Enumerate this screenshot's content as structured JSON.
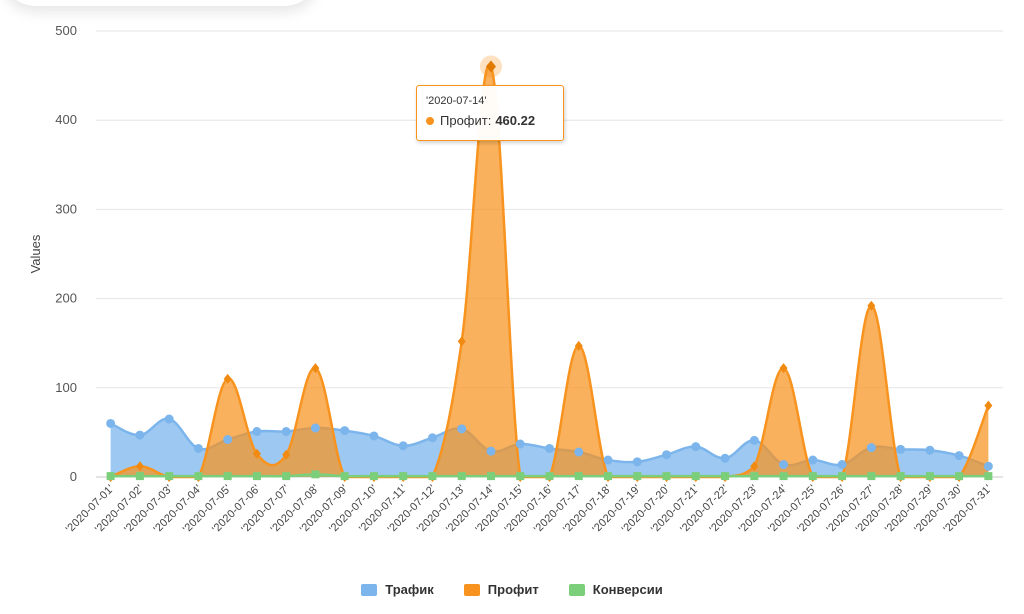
{
  "colors": {
    "traffic": "#7cb5ec",
    "profit": "#f7931e",
    "conversions": "#7ccf7a",
    "grid": "#e6e6e6"
  },
  "chart_data": {
    "type": "area",
    "ylabel": "Values",
    "xlabel": "",
    "ylim": [
      0,
      500
    ],
    "yticks": [
      0,
      100,
      200,
      300,
      400,
      500
    ],
    "grid": true,
    "legend_position": "bottom-center",
    "categories": [
      "'2020-07-01'",
      "'2020-07-02'",
      "'2020-07-03'",
      "'2020-07-04'",
      "'2020-07-05'",
      "'2020-07-06'",
      "'2020-07-07'",
      "'2020-07-08'",
      "'2020-07-09'",
      "'2020-07-10'",
      "'2020-07-11'",
      "'2020-07-12'",
      "'2020-07-13'",
      "'2020-07-14'",
      "'2020-07-15'",
      "'2020-07-16'",
      "'2020-07-17'",
      "'2020-07-18'",
      "'2020-07-19'",
      "'2020-07-20'",
      "'2020-07-21'",
      "'2020-07-22'",
      "'2020-07-23'",
      "'2020-07-24'",
      "'2020-07-25'",
      "'2020-07-26'",
      "'2020-07-27'",
      "'2020-07-28'",
      "'2020-07-29'",
      "'2020-07-30'",
      "'2020-07-31'"
    ],
    "series": [
      {
        "name": "Трафик",
        "color_key": "traffic",
        "values": [
          60,
          47,
          65,
          32,
          42,
          51,
          51,
          55,
          52,
          46,
          35,
          44,
          54,
          29,
          37,
          32,
          28,
          19,
          17,
          25,
          34,
          21,
          41,
          14,
          19,
          14,
          33,
          31,
          30,
          24,
          12
        ]
      },
      {
        "name": "Профит",
        "color_key": "profit",
        "values": [
          0,
          12,
          0,
          0,
          110,
          26,
          25,
          122,
          0,
          0,
          0,
          0,
          152,
          460.22,
          0,
          0,
          147,
          0,
          0,
          0,
          0,
          0,
          12,
          122,
          0,
          0,
          192,
          0,
          0,
          0,
          80
        ]
      },
      {
        "name": "Конверсии",
        "color_key": "conversions",
        "values": [
          1,
          1,
          1,
          1,
          1,
          1,
          1,
          3,
          1,
          1,
          1,
          1,
          1,
          1,
          1,
          1,
          1,
          1,
          1,
          1,
          1,
          1,
          1,
          1,
          1,
          1,
          1,
          1,
          1,
          1,
          1
        ]
      }
    ],
    "tooltip": {
      "category": "'2020-07-14'",
      "series": "Профит",
      "label": "Профит:",
      "value": "460.22"
    }
  }
}
